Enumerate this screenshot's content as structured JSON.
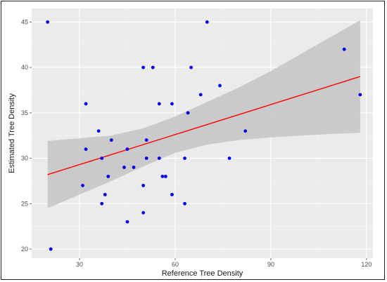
{
  "chart_data": {
    "type": "scatter",
    "title": "",
    "xlabel": "Reference Tree Density",
    "ylabel": "Estimated Tree Density",
    "xlim": [
      15,
      122
    ],
    "ylim": [
      19,
      46.5
    ],
    "x_ticks": [
      30,
      60,
      90,
      120
    ],
    "y_ticks": [
      20,
      25,
      30,
      35,
      40,
      45
    ],
    "x_tick_labels": [
      "30",
      "60",
      "90",
      "120"
    ],
    "y_tick_labels": [
      "20",
      "25",
      "30",
      "35",
      "40",
      "45"
    ],
    "grid": true,
    "legend": "none",
    "colors": {
      "panel": "#ebebeb",
      "grid_major": "#ffffff",
      "points": "#0000ee",
      "trend": "#ff0000",
      "confidence_band": "#c4c4c4"
    },
    "points": [
      {
        "x": 20,
        "y": 45
      },
      {
        "x": 21,
        "y": 20
      },
      {
        "x": 31,
        "y": 27
      },
      {
        "x": 32,
        "y": 31
      },
      {
        "x": 32,
        "y": 36
      },
      {
        "x": 36,
        "y": 33
      },
      {
        "x": 37,
        "y": 25
      },
      {
        "x": 37,
        "y": 30
      },
      {
        "x": 38,
        "y": 26
      },
      {
        "x": 39,
        "y": 28
      },
      {
        "x": 40,
        "y": 32
      },
      {
        "x": 44,
        "y": 29
      },
      {
        "x": 45,
        "y": 31
      },
      {
        "x": 45,
        "y": 23
      },
      {
        "x": 47,
        "y": 29
      },
      {
        "x": 50,
        "y": 40
      },
      {
        "x": 50,
        "y": 27
      },
      {
        "x": 50,
        "y": 24
      },
      {
        "x": 51,
        "y": 32
      },
      {
        "x": 51,
        "y": 30
      },
      {
        "x": 53,
        "y": 40
      },
      {
        "x": 55,
        "y": 36
      },
      {
        "x": 55,
        "y": 30
      },
      {
        "x": 56,
        "y": 28
      },
      {
        "x": 57,
        "y": 28
      },
      {
        "x": 59,
        "y": 36
      },
      {
        "x": 59,
        "y": 26
      },
      {
        "x": 63,
        "y": 30
      },
      {
        "x": 63,
        "y": 25
      },
      {
        "x": 64,
        "y": 35
      },
      {
        "x": 65,
        "y": 40
      },
      {
        "x": 68,
        "y": 37
      },
      {
        "x": 70,
        "y": 45
      },
      {
        "x": 74,
        "y": 38
      },
      {
        "x": 77,
        "y": 30
      },
      {
        "x": 82,
        "y": 33
      },
      {
        "x": 113,
        "y": 42
      },
      {
        "x": 118,
        "y": 37
      }
    ],
    "trend_line": {
      "x": [
        20,
        118
      ],
      "y": [
        28.2,
        39
      ]
    },
    "confidence_band": {
      "x": [
        20,
        30,
        40,
        50,
        60,
        70,
        80,
        90,
        100,
        110,
        118
      ],
      "upper": [
        31.9,
        32.2,
        32.5,
        33.3,
        34.6,
        36.2,
        37.8,
        39.6,
        41.6,
        43.6,
        45.2
      ],
      "lower": [
        24.5,
        26.0,
        27.5,
        29.1,
        30.6,
        31.5,
        32.0,
        32.3,
        32.5,
        32.7,
        32.8
      ]
    }
  }
}
